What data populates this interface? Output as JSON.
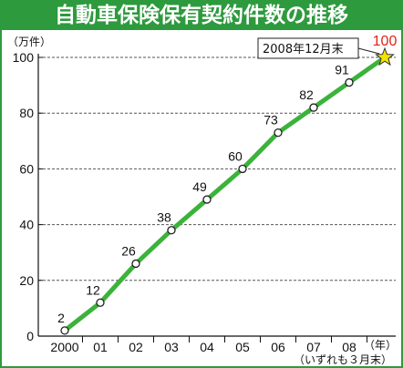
{
  "title": "自動車保険保有契約件数の推移",
  "y_unit_label": "（万件）",
  "x_unit_label": "（年）",
  "footnote": "（いずれも３月末）",
  "callout": "2008年12月末",
  "colors": {
    "frame": "#2e9a3e",
    "line": "#3bb33b",
    "highlight_label": "#e2231a",
    "star_fill": "#f2e300"
  },
  "chart_data": {
    "type": "line",
    "title": "自動車保険保有契約件数の推移",
    "categories": [
      "2000",
      "01",
      "02",
      "03",
      "04",
      "05",
      "06",
      "07",
      "08",
      ""
    ],
    "values": [
      2,
      12,
      26,
      38,
      49,
      60,
      73,
      82,
      91,
      100
    ],
    "value_labels": [
      "2",
      "12",
      "26",
      "38",
      "49",
      "60",
      "73",
      "82",
      "91",
      "100"
    ],
    "last_point_marker": "star-icon",
    "ylim": [
      0,
      100
    ],
    "y_ticks": [
      0,
      20,
      40,
      60,
      80,
      100
    ],
    "grid": "horizontal dashed",
    "legend": "none"
  }
}
